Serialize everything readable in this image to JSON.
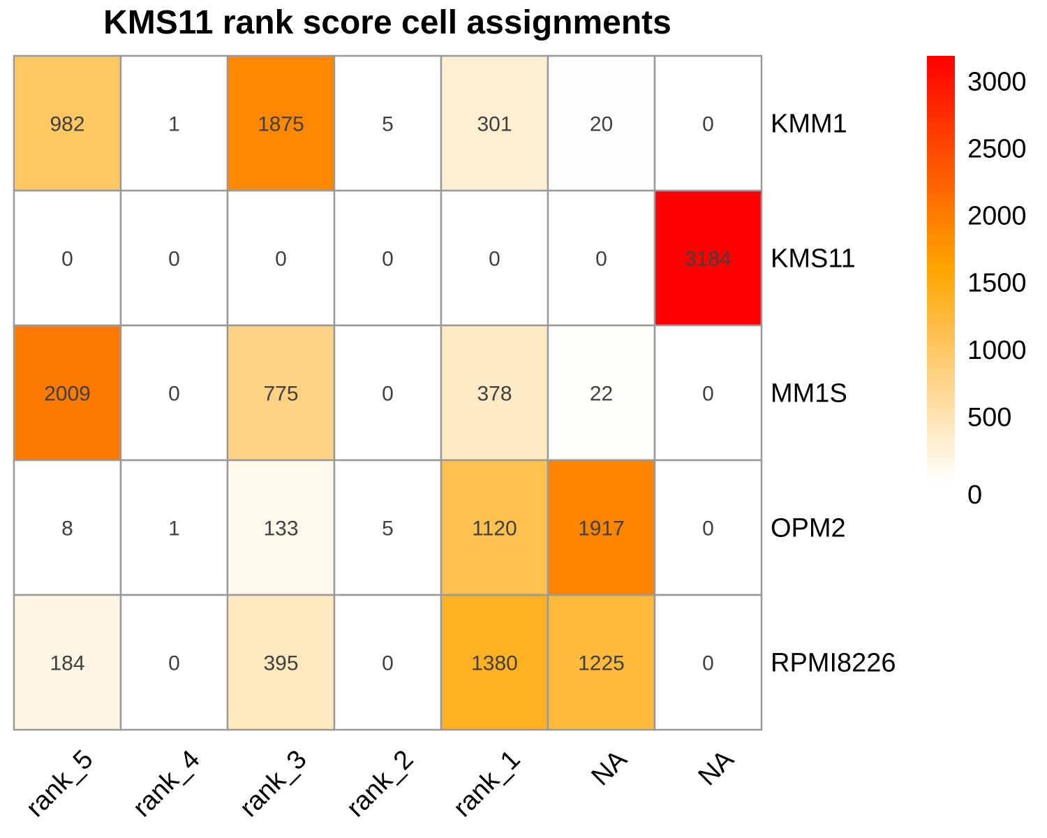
{
  "chart_data": {
    "type": "heatmap",
    "title": "KMS11 rank score cell assignments",
    "rows": [
      "KMM1",
      "KMS11",
      "MM1S",
      "OPM2",
      "RPMI8226"
    ],
    "columns": [
      "rank_5",
      "rank_4",
      "rank_3",
      "rank_2",
      "rank_1",
      "NA",
      "NA"
    ],
    "values": [
      [
        982,
        1,
        1875,
        5,
        301,
        20,
        0
      ],
      [
        0,
        0,
        0,
        0,
        0,
        0,
        3184
      ],
      [
        2009,
        0,
        775,
        0,
        378,
        22,
        0
      ],
      [
        8,
        1,
        133,
        5,
        1120,
        1917,
        0
      ],
      [
        184,
        0,
        395,
        0,
        1380,
        1225,
        0
      ]
    ],
    "color_scale": {
      "min": 0,
      "max": 3184,
      "stops": [
        {
          "value": 0,
          "color": "#ffffff"
        },
        {
          "value": 1600,
          "color": "#ffa500"
        },
        {
          "value": 3184,
          "color": "#ff0000"
        }
      ],
      "ticks": [
        "0",
        "500",
        "1000",
        "1500",
        "2000",
        "2500",
        "3000"
      ],
      "tick_values": [
        0,
        500,
        1000,
        1500,
        2000,
        2500,
        3000
      ]
    },
    "legend": "right",
    "grid": true,
    "grid_color": "#999999"
  }
}
